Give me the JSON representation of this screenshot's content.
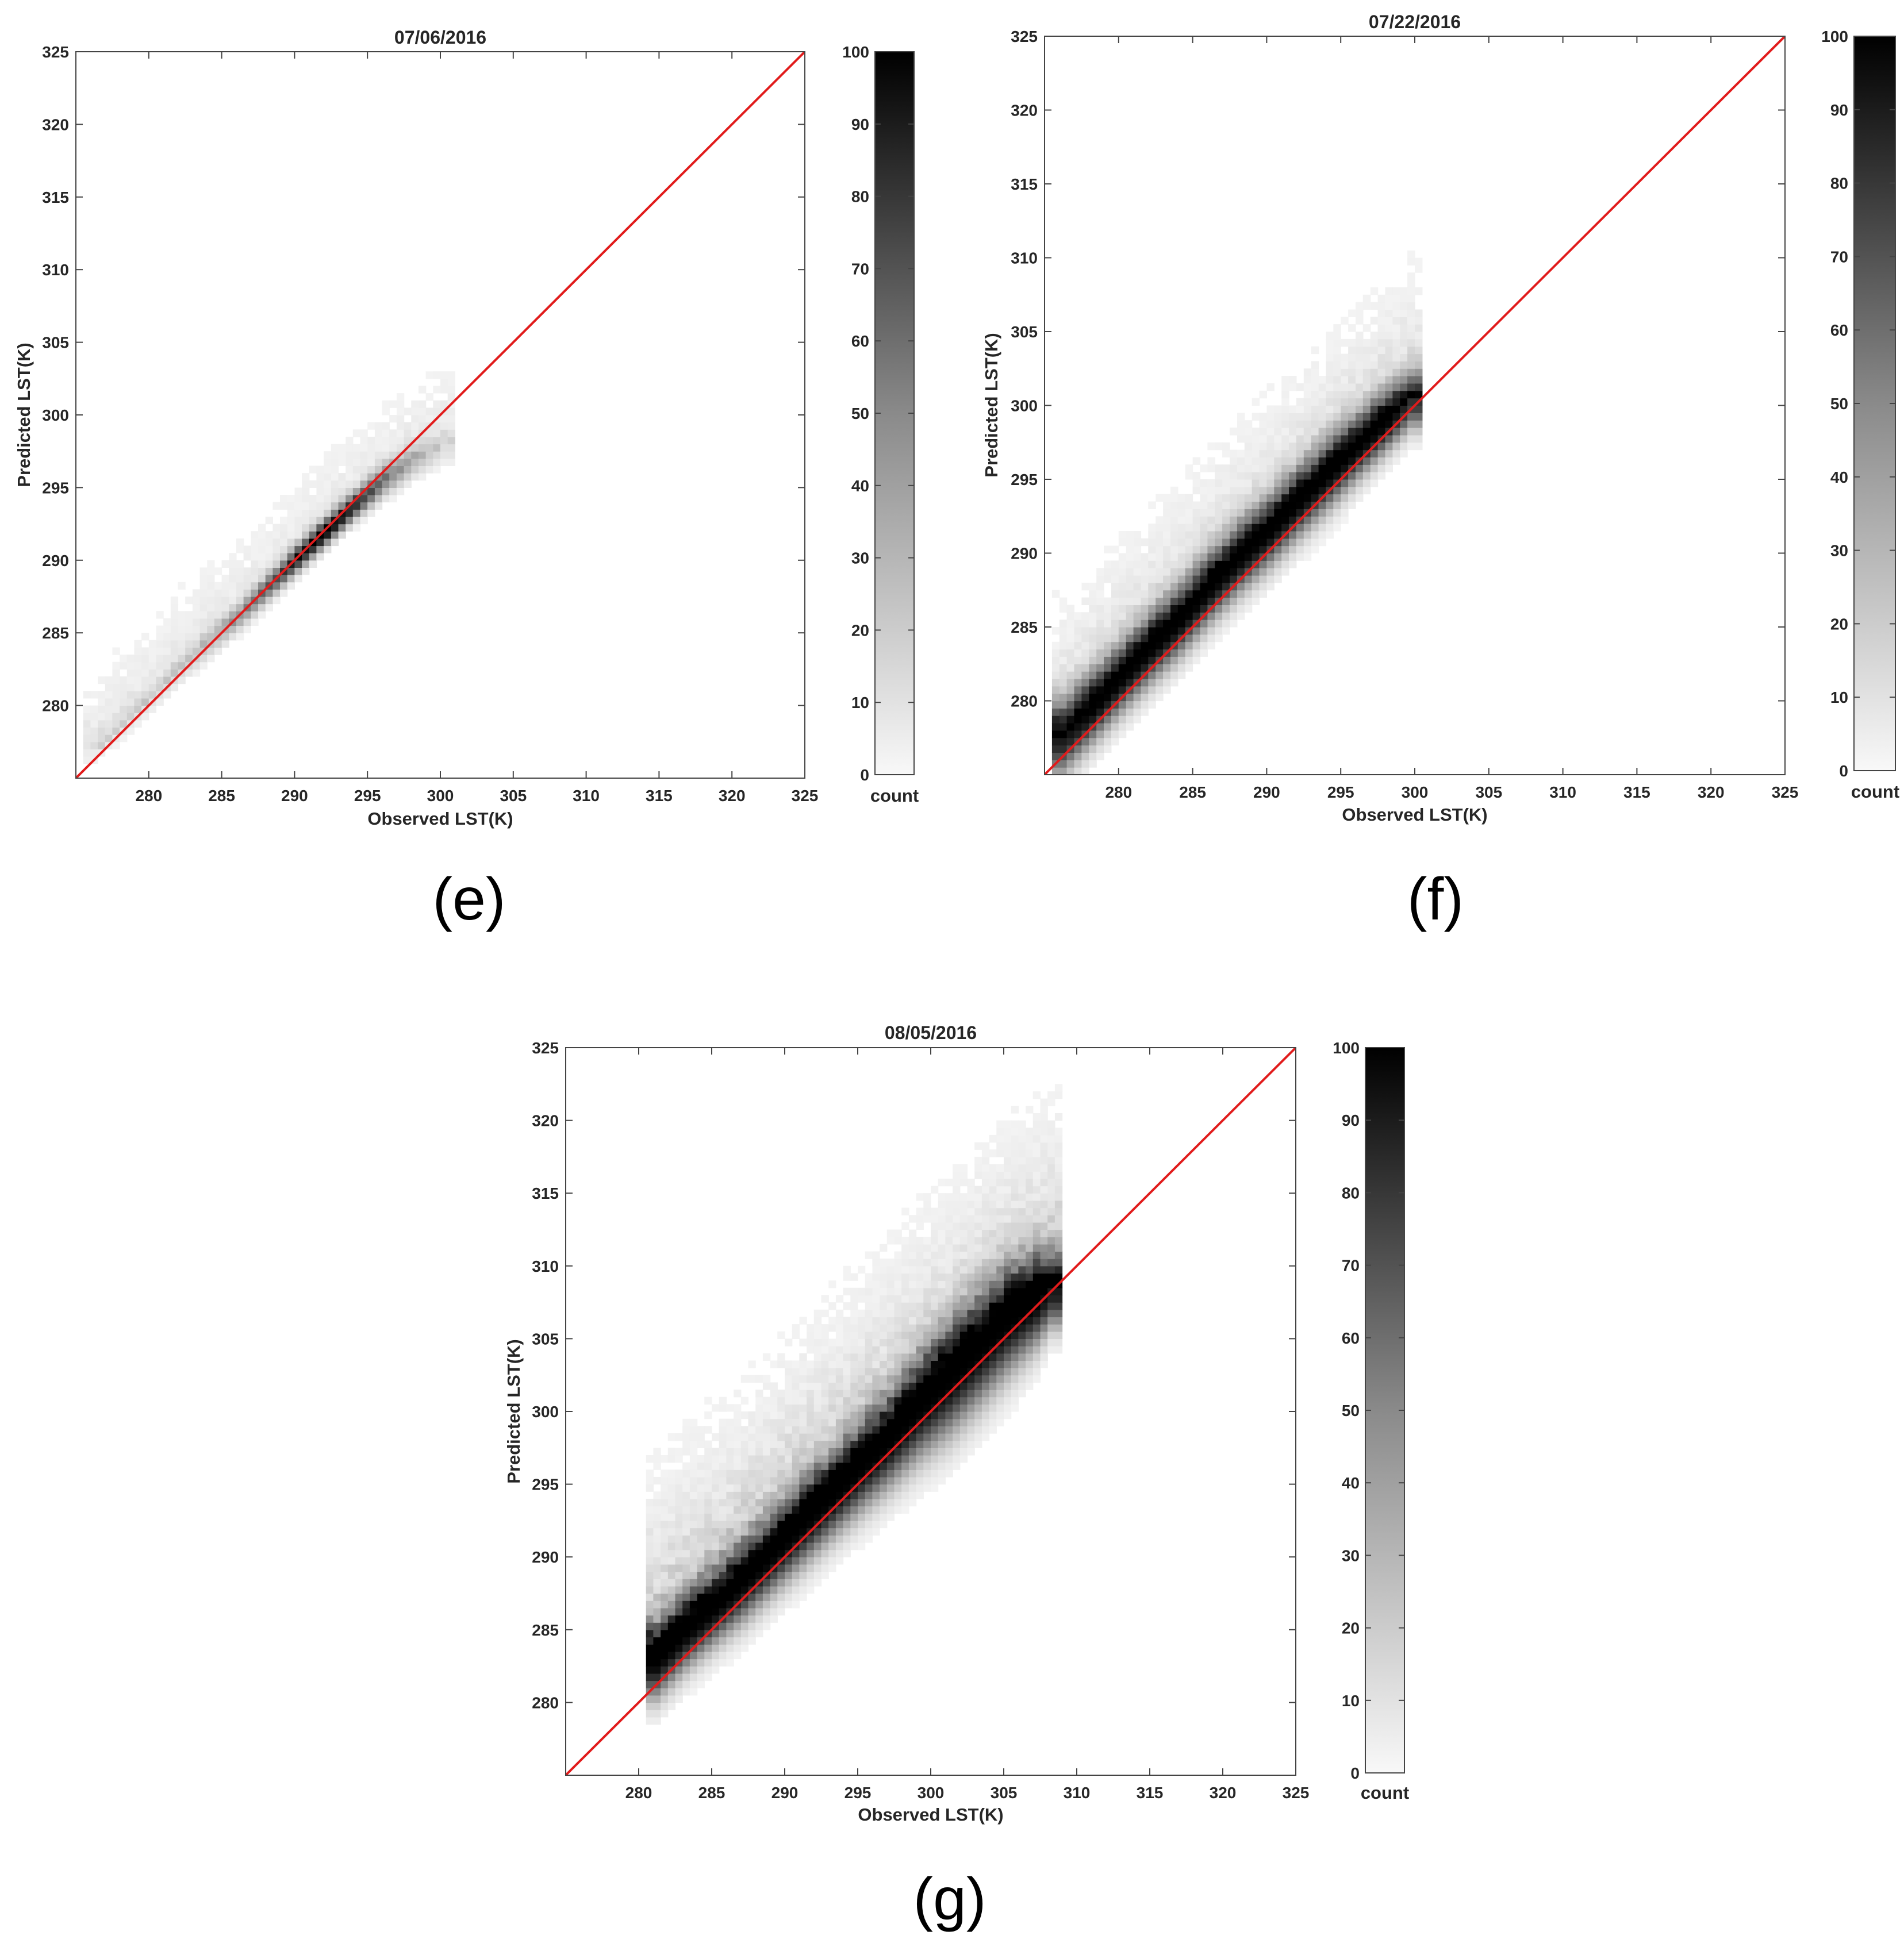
{
  "chart_data": [
    {
      "type": "heatmap",
      "panel_label": "(e)",
      "title": "07/06/2016",
      "xlabel": "Observed LST(K)",
      "ylabel": "Predicted LST(K)",
      "xlim": [
        275,
        325
      ],
      "ylim": [
        275,
        325
      ],
      "xticks": [
        280,
        285,
        290,
        295,
        300,
        305,
        310,
        315,
        320,
        325
      ],
      "yticks": [
        280,
        285,
        290,
        295,
        300,
        305,
        310,
        315,
        320,
        325
      ],
      "one_to_one_line": {
        "from": [
          275,
          275
        ],
        "to": [
          325,
          325
        ],
        "color": "#e11b1b"
      },
      "colorbar": {
        "label": "count",
        "range": [
          0,
          100
        ],
        "ticks": [
          0,
          10,
          20,
          30,
          40,
          50,
          60,
          70,
          80,
          90,
          100
        ]
      },
      "density_ridge": {
        "x": [
          276,
          278,
          280,
          282,
          284,
          286,
          288,
          290,
          292,
          294,
          296,
          298,
          300
        ],
        "y": [
          276.5,
          278.4,
          280.3,
          282.3,
          284.1,
          285.9,
          287.9,
          289.9,
          291.8,
          293.6,
          295.3,
          296.6,
          297.5
        ],
        "peak_count": [
          5,
          8,
          10,
          14,
          22,
          35,
          55,
          85,
          100,
          80,
          45,
          25,
          10
        ],
        "spread": [
          0.6,
          0.6,
          0.6,
          0.6,
          0.6,
          0.6,
          0.6,
          0.6,
          0.6,
          0.6,
          0.7,
          0.7,
          0.7
        ]
      }
    },
    {
      "type": "heatmap",
      "panel_label": "(f)",
      "title": "07/22/2016",
      "xlabel": "Observed LST(K)",
      "ylabel": "Predicted LST(K)",
      "xlim": [
        275,
        325
      ],
      "ylim": [
        275,
        325
      ],
      "xticks": [
        280,
        285,
        290,
        295,
        300,
        305,
        310,
        315,
        320,
        325
      ],
      "yticks": [
        280,
        285,
        290,
        295,
        300,
        305,
        310,
        315,
        320,
        325
      ],
      "one_to_one_line": {
        "from": [
          275,
          275
        ],
        "to": [
          325,
          325
        ],
        "color": "#e11b1b"
      },
      "colorbar": {
        "label": "count",
        "range": [
          0,
          100
        ],
        "ticks": [
          0,
          10,
          20,
          30,
          40,
          50,
          60,
          70,
          80,
          90,
          100
        ]
      },
      "density_ridge": {
        "x": [
          276,
          278,
          280,
          282,
          284,
          286,
          288,
          290,
          292,
          294,
          296,
          298,
          299.5
        ],
        "y": [
          277.2,
          279.2,
          281.3,
          283.3,
          285.2,
          287.4,
          289.4,
          291.2,
          293.2,
          295.1,
          297.0,
          298.8,
          300.0
        ],
        "peak_count": [
          90,
          100,
          100,
          100,
          100,
          100,
          100,
          100,
          100,
          100,
          100,
          100,
          80
        ],
        "spread": [
          1.6,
          1.5,
          1.5,
          1.5,
          1.5,
          1.5,
          1.5,
          1.5,
          1.5,
          1.5,
          1.4,
          1.3,
          1.2
        ]
      }
    },
    {
      "type": "heatmap",
      "panel_label": "(g)",
      "title": "08/05/2016",
      "xlabel": "Observed LST(K)",
      "ylabel": "Predicted LST(K)",
      "xlim": [
        275,
        325
      ],
      "ylim": [
        275,
        325
      ],
      "xticks": [
        280,
        285,
        290,
        295,
        300,
        305,
        310,
        315,
        320,
        325
      ],
      "yticks": [
        280,
        285,
        290,
        295,
        300,
        305,
        310,
        315,
        320,
        325
      ],
      "one_to_one_line": {
        "from": [
          275,
          275
        ],
        "to": [
          325,
          325
        ],
        "color": "#e11b1b"
      },
      "colorbar": {
        "label": "count",
        "range": [
          0,
          100
        ],
        "ticks": [
          0,
          10,
          20,
          30,
          40,
          50,
          60,
          70,
          80,
          90,
          100
        ]
      },
      "density_ridge": {
        "x": [
          281,
          283,
          285,
          287,
          289,
          291,
          293,
          295,
          297,
          299,
          301,
          303,
          305,
          307,
          308
        ],
        "y": [
          282.5,
          284.5,
          286.2,
          288.0,
          289.9,
          291.9,
          293.8,
          295.8,
          297.7,
          299.9,
          301.8,
          303.8,
          305.8,
          307.3,
          308.0
        ],
        "peak_count": [
          100,
          100,
          100,
          100,
          100,
          100,
          100,
          100,
          100,
          100,
          100,
          100,
          100,
          100,
          90
        ],
        "spread": [
          1.6,
          1.6,
          1.6,
          1.7,
          1.7,
          1.8,
          1.8,
          1.9,
          2.0,
          2.2,
          2.4,
          2.4,
          2.3,
          2.0,
          1.6
        ]
      }
    }
  ]
}
